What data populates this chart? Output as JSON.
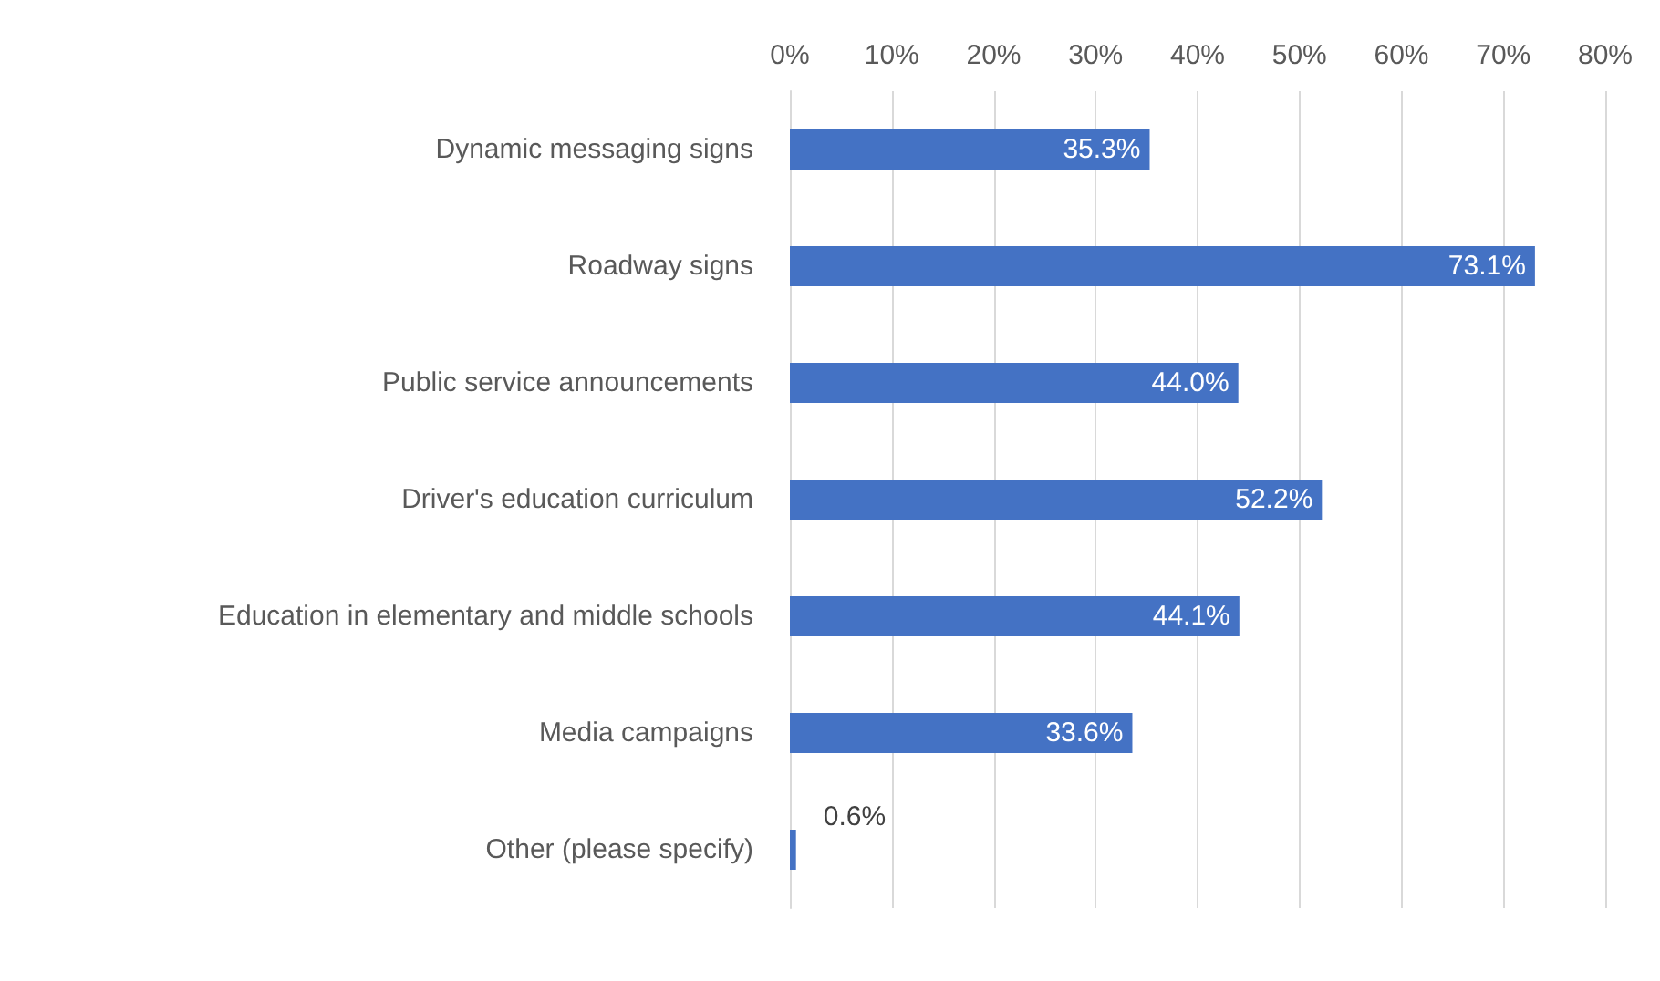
{
  "chart_data": {
    "type": "bar",
    "orientation": "horizontal",
    "categories": [
      "Dynamic messaging signs",
      "Roadway signs",
      "Public service announcements",
      "Driver's education curriculum",
      "Education in elementary and middle schools",
      "Media campaigns",
      "Other (please specify)"
    ],
    "values": [
      35.3,
      73.1,
      44.0,
      52.2,
      44.1,
      33.6,
      0.6
    ],
    "value_labels": [
      "35.3%",
      "73.1%",
      "44.0%",
      "52.2%",
      "44.1%",
      "33.6%",
      "0.6%"
    ],
    "color": "#4472c4",
    "xlim": [
      0,
      80
    ],
    "xticks": [
      {
        "value": 0,
        "label": "0%"
      },
      {
        "value": 10,
        "label": "10%"
      },
      {
        "value": 20,
        "label": "20%"
      },
      {
        "value": 30,
        "label": "30%"
      },
      {
        "value": 40,
        "label": "40%"
      },
      {
        "value": 50,
        "label": "50%"
      },
      {
        "value": 60,
        "label": "60%"
      },
      {
        "value": 70,
        "label": "70%"
      },
      {
        "value": 80,
        "label": "80%"
      }
    ],
    "grid": "x"
  }
}
